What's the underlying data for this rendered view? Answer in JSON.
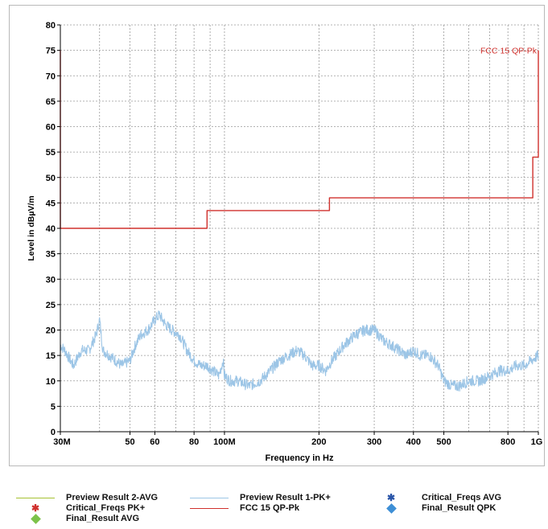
{
  "chart_data": {
    "type": "line",
    "xlabel": "Frequency in Hz",
    "ylabel": "Level in dBµV/m",
    "x_scale": "log",
    "xlim": [
      30000000,
      1000000000
    ],
    "ylim": [
      0,
      80
    ],
    "grid": true,
    "y_ticks": [
      0,
      5,
      10,
      15,
      20,
      25,
      30,
      35,
      40,
      45,
      50,
      55,
      60,
      65,
      70,
      75,
      80
    ],
    "x_ticks": [
      {
        "value": 30000000,
        "label": "30M"
      },
      {
        "value": 50000000,
        "label": "50"
      },
      {
        "value": 60000000,
        "label": "60"
      },
      {
        "value": 80000000,
        "label": "80"
      },
      {
        "value": 100000000,
        "label": "100M"
      },
      {
        "value": 200000000,
        "label": "200"
      },
      {
        "value": 300000000,
        "label": "300"
      },
      {
        "value": 400000000,
        "label": "400"
      },
      {
        "value": 500000000,
        "label": "500"
      },
      {
        "value": 800000000,
        "label": "800"
      },
      {
        "value": 1000000000,
        "label": "1G"
      }
    ],
    "annotation": "FCC 15 QP-Pk",
    "series": [
      {
        "name": "FCC 15 QP-Pk",
        "color": "#d0312d",
        "x": [
          30000000,
          30000000,
          88000000,
          88000000,
          216000000,
          216000000,
          960000000,
          960000000,
          1000000000,
          1000000000
        ],
        "y": [
          75,
          40,
          40,
          43.5,
          43.5,
          46,
          46,
          54,
          54,
          75
        ]
      },
      {
        "name": "Preview Result 1-PK+",
        "color": "#9cc5e6",
        "x": [
          30000000,
          31000000,
          33000000,
          35000000,
          37000000,
          39000000,
          40000000,
          41000000,
          43000000,
          45000000,
          47000000,
          50000000,
          52000000,
          54000000,
          57000000,
          60000000,
          62000000,
          65000000,
          68000000,
          72000000,
          76000000,
          80000000,
          84000000,
          88000000,
          92000000,
          96000000,
          99000000,
          100000000,
          104000000,
          110000000,
          120000000,
          130000000,
          140000000,
          150000000,
          160000000,
          170000000,
          180000000,
          190000000,
          200000000,
          210000000,
          220000000,
          240000000,
          260000000,
          280000000,
          300000000,
          320000000,
          340000000,
          360000000,
          380000000,
          400000000,
          420000000,
          450000000,
          480000000,
          500000000,
          530000000,
          560000000,
          600000000,
          650000000,
          700000000,
          750000000,
          800000000,
          850000000,
          900000000,
          950000000,
          1000000000
        ],
        "y": [
          17,
          16,
          13,
          16,
          16,
          19,
          22,
          16,
          15,
          14,
          13,
          14,
          17,
          19,
          20,
          22,
          23,
          21,
          20,
          19,
          16,
          14,
          13,
          13,
          12,
          11,
          14,
          11,
          10,
          10,
          9,
          10,
          12,
          14,
          15,
          16,
          15,
          13,
          13,
          12,
          14,
          17,
          19,
          20,
          20,
          18,
          17,
          16,
          15,
          16,
          15,
          15,
          13,
          10,
          9,
          9,
          10,
          10,
          11,
          12,
          12,
          13,
          13,
          14,
          15
        ]
      }
    ],
    "legend": {
      "placement": "bottom",
      "entries": [
        {
          "label": "Preview Result 2-AVG",
          "kind": "line",
          "color": "#a7c233"
        },
        {
          "label": "Critical_Freqs PK+",
          "kind": "star",
          "color": "#d0312d"
        },
        {
          "label": "Final_Result AVG",
          "kind": "diamond",
          "color": "#7cc24a"
        },
        {
          "label": "Preview Result 1-PK+",
          "kind": "line",
          "color": "#9cc5e6"
        },
        {
          "label": "FCC 15 QP-Pk",
          "kind": "line",
          "color": "#d0312d"
        },
        {
          "label": "Critical_Freqs AVG",
          "kind": "star",
          "color": "#2a55a8"
        },
        {
          "label": "Final_Result QPK",
          "kind": "diamond",
          "color": "#3e8fd6"
        }
      ]
    }
  }
}
